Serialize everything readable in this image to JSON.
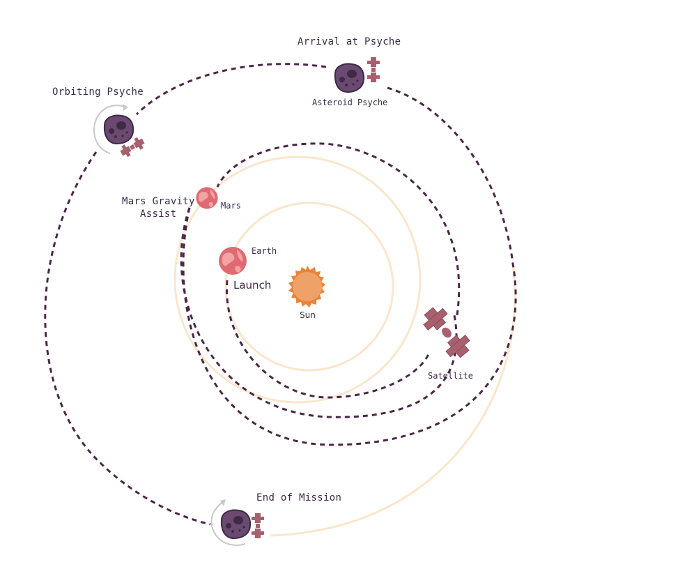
{
  "labels": {
    "arrival": "Arrival at Psyche",
    "asteroid": "Asteroid Psyche",
    "orbiting": "Orbiting Psyche",
    "mars_assist_line1": "Mars Gravity",
    "mars_assist_line2": "Assist",
    "mars": "Mars",
    "earth": "Earth",
    "launch": "Launch",
    "sun": "Sun",
    "satellite": "Satellite",
    "end": "End of Mission"
  },
  "colors": {
    "trajectory": "#4b2746",
    "orbit": "#fbe6cc",
    "sun": "#e8843a",
    "sun_core": "#eea26a",
    "planet": "#e06a72",
    "planet_patch": "#f2a3a3",
    "asteroid": "#6a4a70",
    "asteroid_dark": "#3e2a45",
    "spacecraft": "#a8606e",
    "rotation_arrow": "#c8c8c8"
  },
  "icons": {
    "sun": "sun-icon",
    "earth": "earth-icon",
    "mars": "mars-icon",
    "asteroid": "asteroid-icon",
    "spacecraft": "spacecraft-icon",
    "rotation": "rotation-arrow-icon"
  }
}
